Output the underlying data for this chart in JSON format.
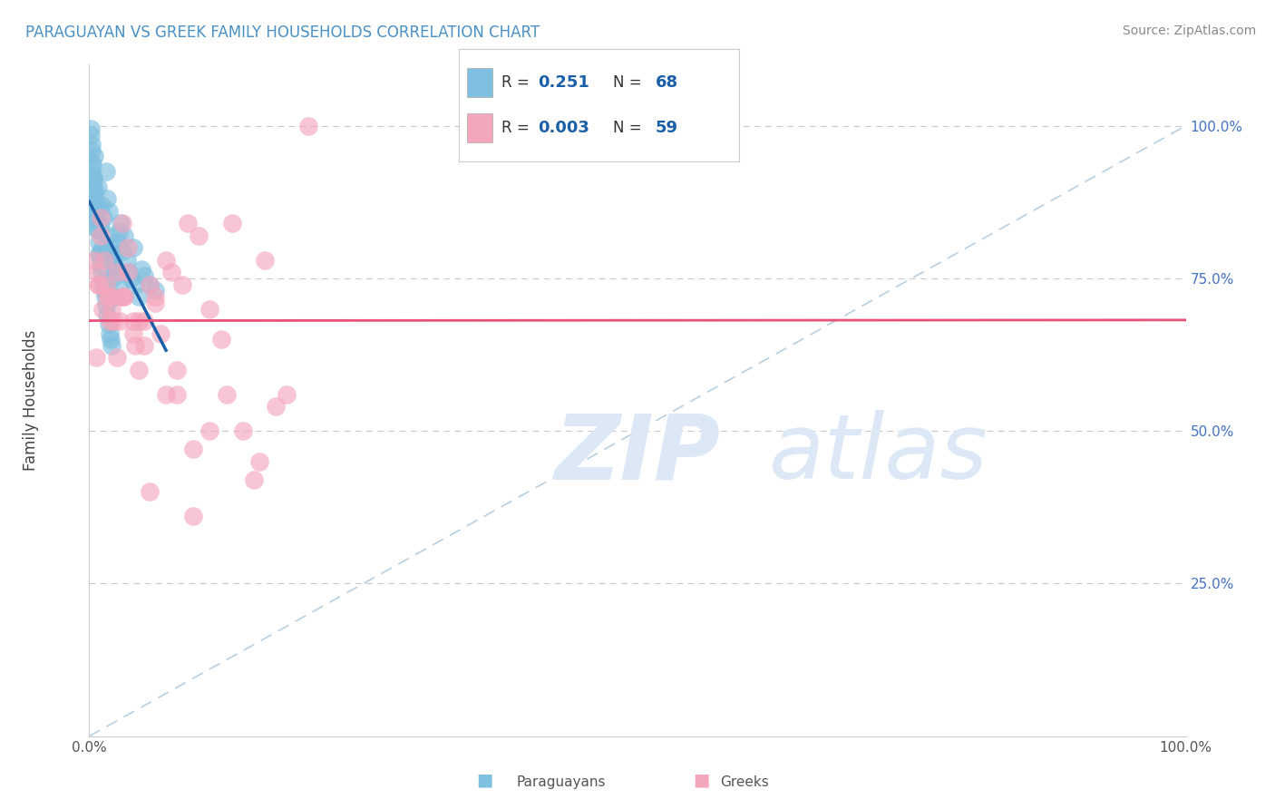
{
  "title": "PARAGUAYAN VS GREEK FAMILY HOUSEHOLDS CORRELATION CHART",
  "source_text": "Source: ZipAtlas.com",
  "ylabel": "Family Households",
  "paraguayan_R": "0.251",
  "paraguayan_N": "68",
  "greek_R": "0.003",
  "greek_N": "59",
  "blue_color": "#7fbfdf",
  "pink_color": "#f4a6bc",
  "blue_line_color": "#1a5fa8",
  "pink_line_color": "#e8507a",
  "diagonal_line_color": "#b8cfe0",
  "title_color": "#4a90c4",
  "legend_R_N_color": "#1a5fa8",
  "ytick_color": "#4472c4",
  "background_color": "#ffffff",
  "grid_color": "#c8c8c8",
  "watermark_color": "#dce8f5",
  "para_x": [
    0.2,
    0.3,
    0.4,
    0.5,
    0.6,
    0.7,
    0.8,
    0.9,
    1.0,
    1.1,
    1.2,
    1.3,
    1.4,
    1.5,
    1.6,
    1.7,
    1.8,
    1.9,
    2.0,
    2.1,
    2.2,
    2.3,
    2.4,
    2.5,
    2.6,
    2.7,
    2.8,
    2.9,
    3.0,
    3.2,
    3.4,
    3.6,
    3.8,
    4.0,
    4.2,
    4.5,
    4.8,
    5.0,
    5.5,
    6.0,
    0.15,
    0.25,
    0.35,
    0.45,
    0.55,
    0.65,
    0.75,
    0.85,
    0.95,
    1.05,
    1.15,
    1.25,
    1.35,
    1.45,
    1.55,
    1.65,
    1.75,
    1.85,
    1.95,
    2.05,
    0.1,
    0.2,
    0.3,
    0.4,
    0.5,
    0.6,
    0.7,
    0.8
  ],
  "para_y": [
    97.0,
    92.0,
    88.5,
    95.0,
    86.0,
    84.0,
    90.0,
    79.0,
    83.5,
    87.0,
    80.0,
    85.0,
    78.5,
    92.5,
    88.0,
    82.0,
    86.0,
    80.0,
    78.0,
    75.0,
    79.0,
    77.0,
    72.0,
    81.0,
    76.0,
    82.5,
    74.0,
    84.0,
    79.5,
    82.0,
    78.0,
    76.0,
    75.0,
    80.0,
    74.0,
    72.0,
    76.5,
    75.5,
    74.0,
    73.0,
    98.5,
    94.0,
    91.5,
    89.0,
    87.5,
    85.0,
    83.0,
    81.0,
    79.0,
    77.5,
    76.0,
    74.5,
    73.0,
    72.0,
    70.5,
    69.0,
    67.5,
    66.0,
    65.0,
    64.0,
    99.5,
    96.0,
    93.5,
    91.0,
    89.5,
    87.0,
    85.5,
    83.0
  ],
  "greek_x": [
    0.5,
    1.0,
    1.5,
    2.0,
    2.5,
    3.0,
    3.5,
    4.0,
    4.5,
    5.0,
    6.0,
    7.0,
    8.0,
    10.0,
    12.0,
    15.0,
    18.0,
    20.0,
    0.8,
    1.2,
    1.8,
    2.5,
    3.0,
    4.0,
    5.5,
    7.5,
    9.0,
    11.0,
    14.0,
    17.0,
    0.6,
    1.4,
    2.2,
    3.2,
    4.5,
    6.5,
    8.5,
    12.5,
    16.0,
    1.0,
    2.0,
    3.5,
    5.0,
    7.0,
    9.5,
    13.0,
    0.7,
    1.6,
    2.8,
    4.2,
    6.0,
    8.0,
    11.0,
    15.5,
    0.9,
    1.9,
    3.0,
    5.5,
    9.5
  ],
  "greek_y": [
    78.0,
    82.0,
    74.0,
    70.0,
    76.0,
    72.0,
    80.0,
    66.0,
    68.0,
    64.0,
    71.0,
    78.0,
    60.0,
    82.0,
    65.0,
    42.0,
    56.0,
    100.0,
    74.0,
    70.0,
    72.0,
    62.0,
    84.0,
    68.0,
    74.0,
    76.0,
    84.0,
    70.0,
    50.0,
    54.0,
    62.0,
    78.0,
    68.0,
    72.0,
    60.0,
    66.0,
    74.0,
    56.0,
    78.0,
    85.0,
    72.0,
    76.0,
    68.0,
    56.0,
    47.0,
    84.0,
    76.0,
    72.0,
    68.0,
    64.0,
    72.0,
    56.0,
    50.0,
    45.0,
    74.0,
    68.0,
    72.0,
    40.0,
    36.0
  ]
}
